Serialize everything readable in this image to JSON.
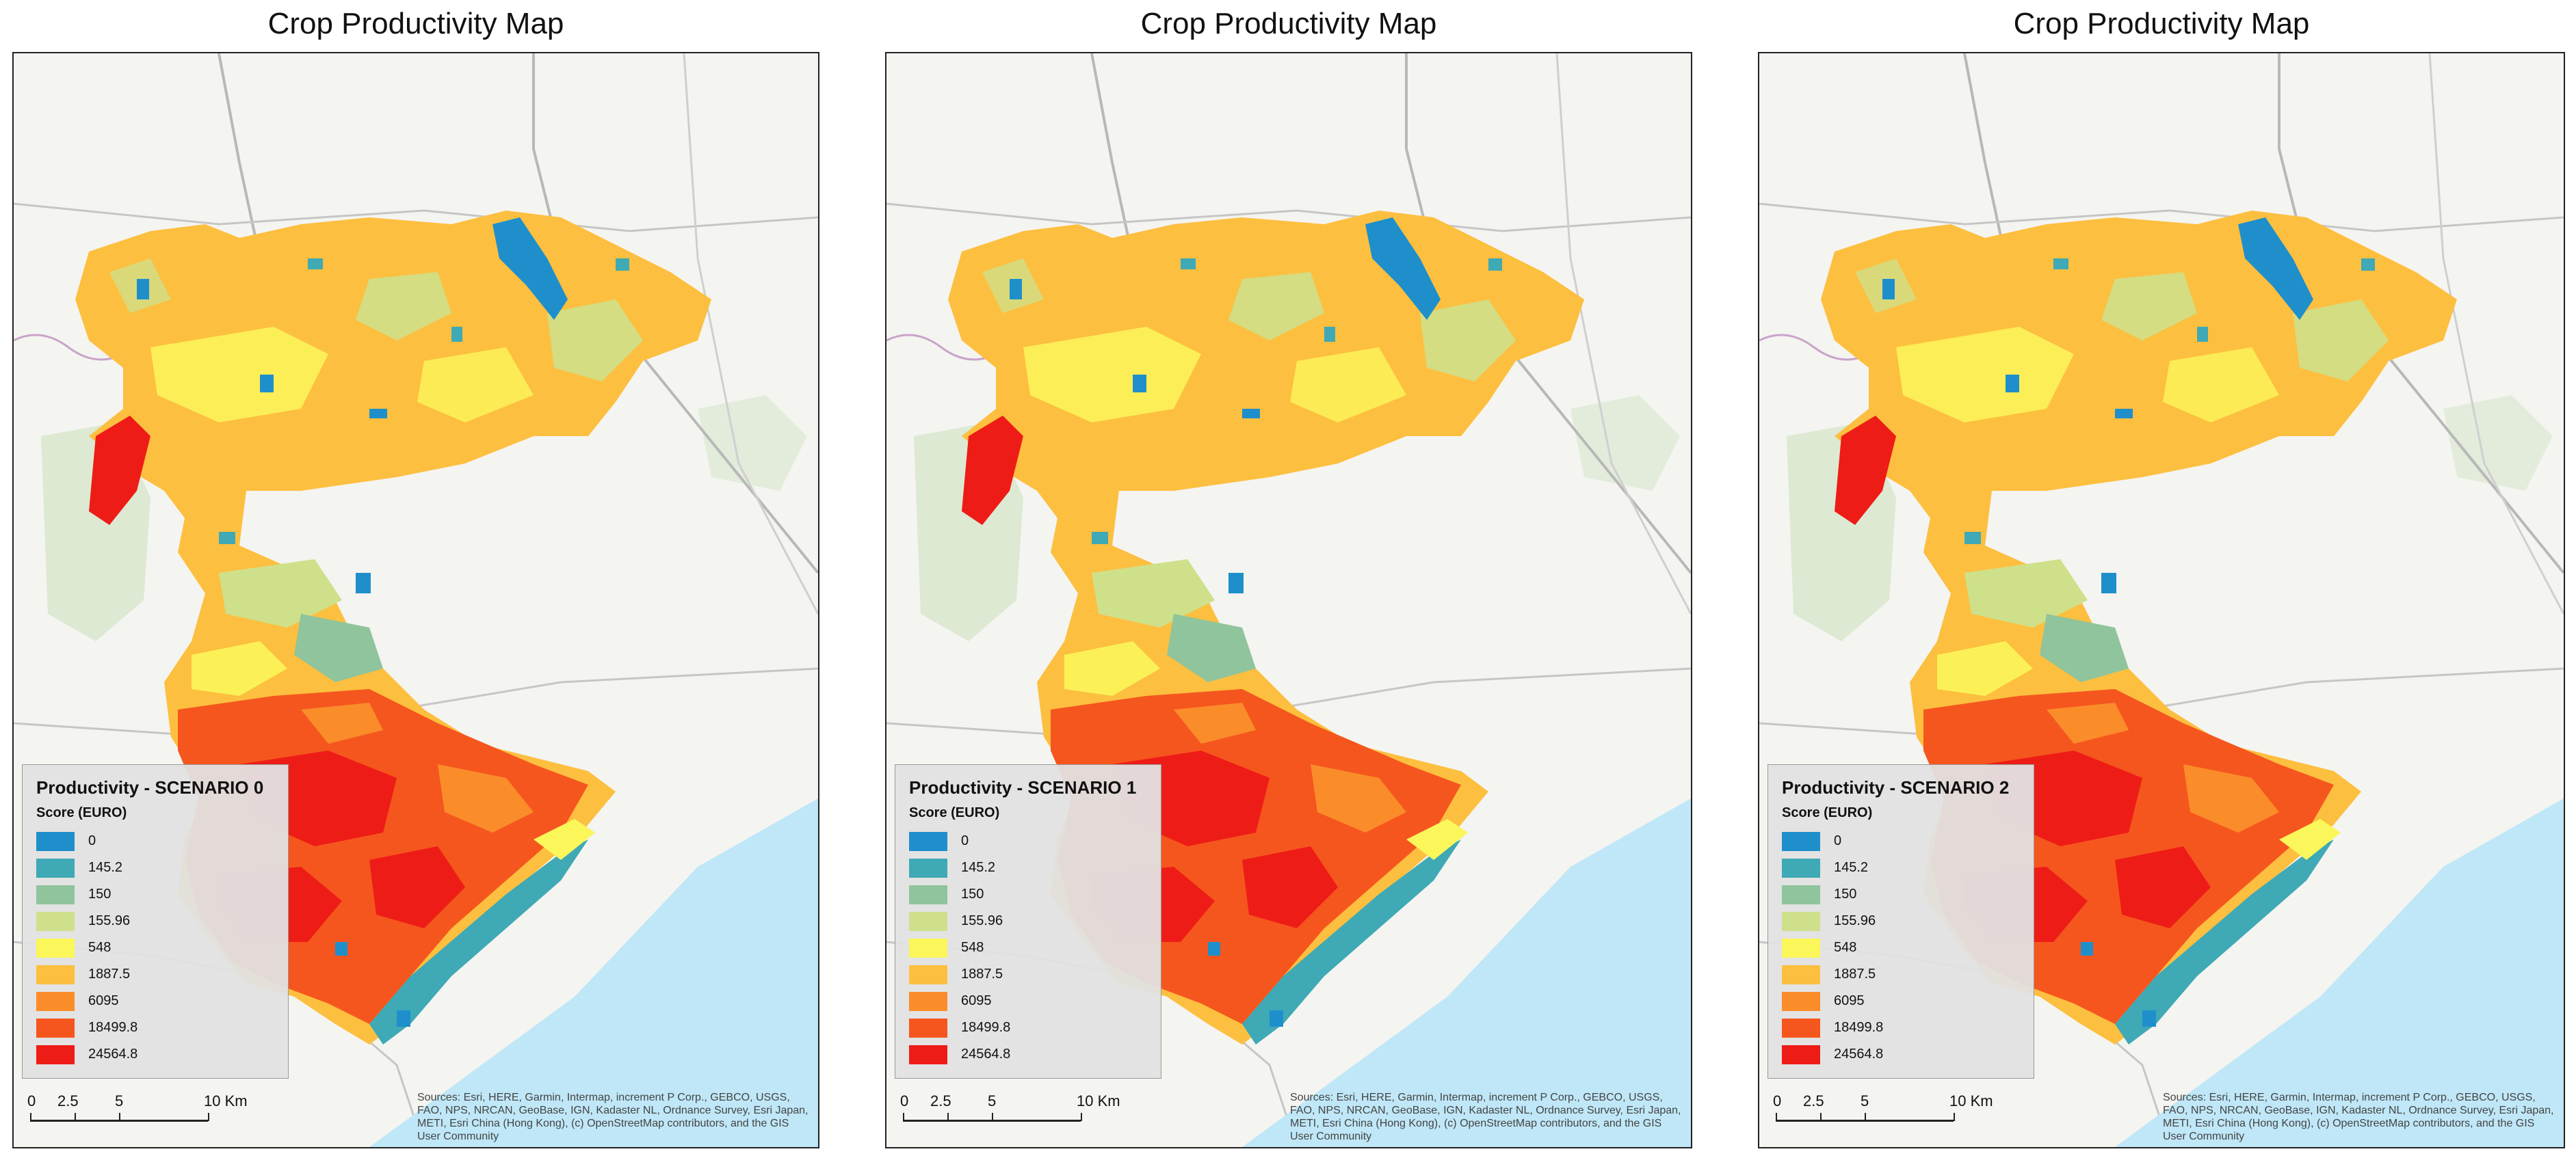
{
  "panels": [
    {
      "title": "Crop Productivity Map",
      "legend_title": "Productivity - SCENARIO 0",
      "legend_subtitle": "Score (EURO)"
    },
    {
      "title": "Crop Productivity Map",
      "legend_title": "Productivity - SCENARIO 1",
      "legend_subtitle": "Score (EURO)"
    },
    {
      "title": "Crop Productivity Map",
      "legend_title": "Productivity - SCENARIO 2",
      "legend_subtitle": "Score (EURO)"
    }
  ],
  "legend_classes": [
    {
      "label": "0",
      "color": "#1f8fcb"
    },
    {
      "label": "145.2",
      "color": "#3fa9b5"
    },
    {
      "label": "150",
      "color": "#8fc49c"
    },
    {
      "label": "155.96",
      "color": "#cfe08a"
    },
    {
      "label": "548",
      "color": "#fbf65a"
    },
    {
      "label": "1887.5",
      "color": "#fdbf3f"
    },
    {
      "label": "6095",
      "color": "#fb8c2a"
    },
    {
      "label": "18499.8",
      "color": "#f5561e"
    },
    {
      "label": "24564.8",
      "color": "#ee1c16"
    }
  ],
  "scalebar": {
    "ticks": [
      "0",
      "2.5",
      "5",
      "10 Km"
    ]
  },
  "attribution": "Sources: Esri, HERE, Garmin, Intermap, increment P Corp., GEBCO, USGS, FAO, NPS, NRCAN, GeoBase, IGN, Kadaster NL, Ordnance Survey, Esri Japan, METI, Esri China (Hong Kong), (c) OpenStreetMap contributors, and the GIS User Community",
  "colors": {
    "sea": "#bfe7f7",
    "land": "#f4f4f1",
    "frame": "#222222"
  }
}
